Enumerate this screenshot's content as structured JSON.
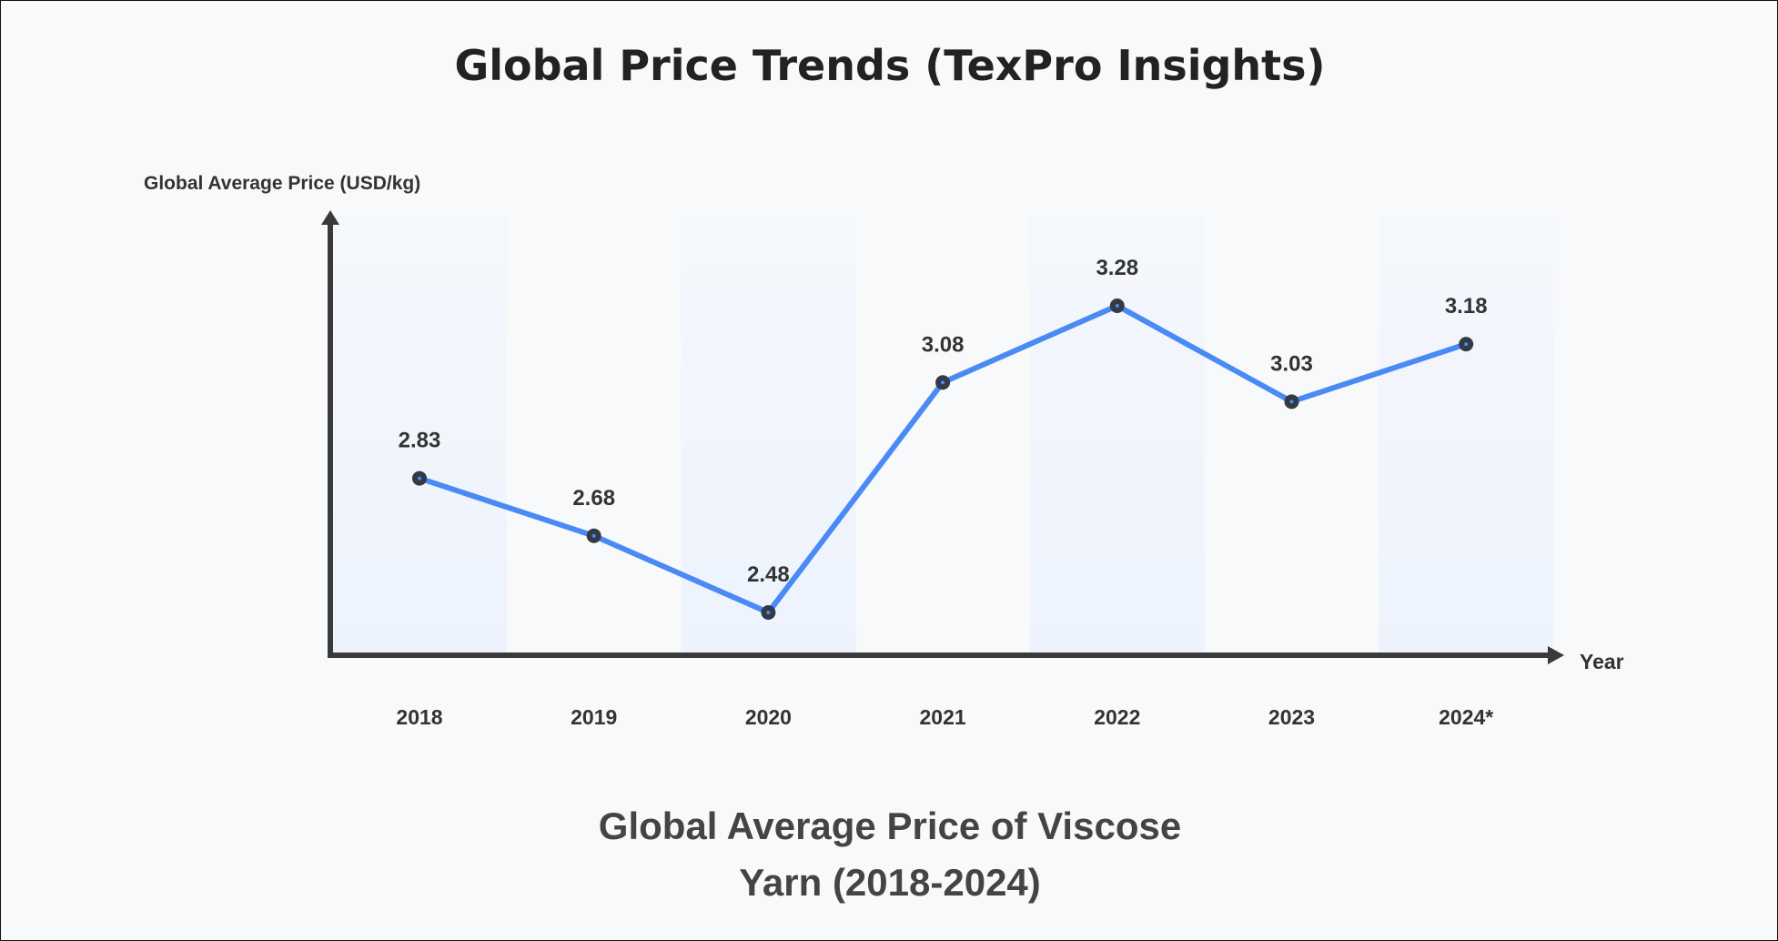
{
  "title": "Global Price Trends (TexPro Insights)",
  "chart_data": {
    "type": "line",
    "title": "Global Average Price of Viscose Yarn (2018-2024)",
    "subtitle_lines": [
      "Global Average Price of Viscose",
      "Yarn (2018-2024)"
    ],
    "xlabel": "Year",
    "ylabel": "Global Average Price (USD/kg)",
    "categories": [
      "2018",
      "2019",
      "2020",
      "2021",
      "2022",
      "2023",
      "2024*"
    ],
    "values": [
      2.83,
      2.68,
      2.48,
      3.08,
      3.28,
      3.03,
      3.18
    ],
    "data_labels": [
      "2.83",
      "2.68",
      "2.48",
      "3.08",
      "3.28",
      "3.03",
      "3.18"
    ],
    "grid": false,
    "alternating_bands": true,
    "colors": {
      "line": "#4a8af4",
      "marker": "#333a44",
      "axis": "#3a3a3a",
      "band": "#edf3fd",
      "background": "#f8f9fb"
    }
  }
}
